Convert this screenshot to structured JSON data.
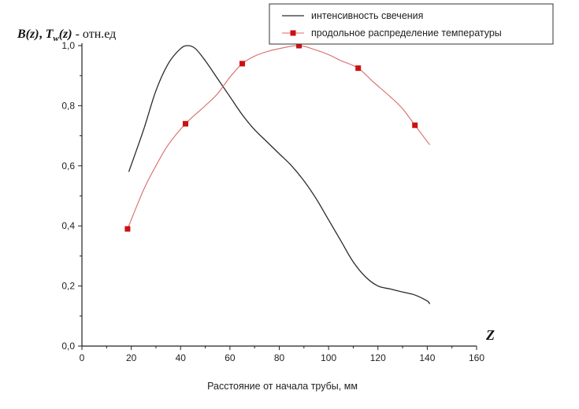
{
  "chart_data": {
    "type": "line",
    "ylabel_parts": {
      "b": "B(z)",
      "sep": ", ",
      "t": "T",
      "sub": "w",
      "targ": "(z)",
      "rest": " - отн.ед"
    },
    "xlabel": "Расстояние от начала трубы, мм",
    "z_label": "Z",
    "xlim": [
      0,
      160
    ],
    "ylim": [
      0,
      1.0
    ],
    "x_ticks": [
      0,
      20,
      40,
      60,
      80,
      100,
      120,
      140,
      160
    ],
    "x_tick_labels": [
      "0",
      "20",
      "40",
      "60",
      "80",
      "100",
      "120",
      "140",
      "160"
    ],
    "y_ticks": [
      0,
      0.2,
      0.4,
      0.6,
      0.8,
      1.0
    ],
    "y_tick_labels": [
      "0,0",
      "0,2",
      "0,4",
      "0,6",
      "0,8",
      "1,0"
    ],
    "legend_position": "top-right",
    "series": [
      {
        "name": "интенсивность свечения",
        "color": "#2a2a2a",
        "marker": "none",
        "x": [
          19,
          25,
          30,
          35,
          40,
          43,
          46,
          50,
          55,
          60,
          65,
          70,
          75,
          80,
          85,
          90,
          95,
          100,
          105,
          110,
          115,
          120,
          125,
          130,
          135,
          140,
          141
        ],
        "y": [
          0.58,
          0.72,
          0.85,
          0.94,
          0.99,
          1.0,
          0.99,
          0.95,
          0.89,
          0.83,
          0.77,
          0.72,
          0.68,
          0.64,
          0.6,
          0.55,
          0.49,
          0.42,
          0.35,
          0.28,
          0.23,
          0.2,
          0.19,
          0.18,
          0.17,
          0.15,
          0.14
        ]
      },
      {
        "name": "продольное распределение температуры",
        "color": "#cc1111",
        "marker": "square",
        "x": [
          18.5,
          42,
          65,
          88,
          112,
          135
        ],
        "y": [
          0.39,
          0.74,
          0.94,
          1.0,
          0.925,
          0.735
        ],
        "curve_x": [
          18.5,
          25,
          30,
          35,
          42,
          50,
          55,
          60,
          65,
          70,
          75,
          80,
          88,
          95,
          100,
          105,
          112,
          118,
          125,
          130,
          135,
          141
        ],
        "curve_y": [
          0.39,
          0.52,
          0.6,
          0.67,
          0.74,
          0.8,
          0.84,
          0.895,
          0.94,
          0.965,
          0.98,
          0.99,
          1.0,
          0.985,
          0.97,
          0.95,
          0.925,
          0.88,
          0.83,
          0.79,
          0.735,
          0.67
        ]
      }
    ]
  }
}
